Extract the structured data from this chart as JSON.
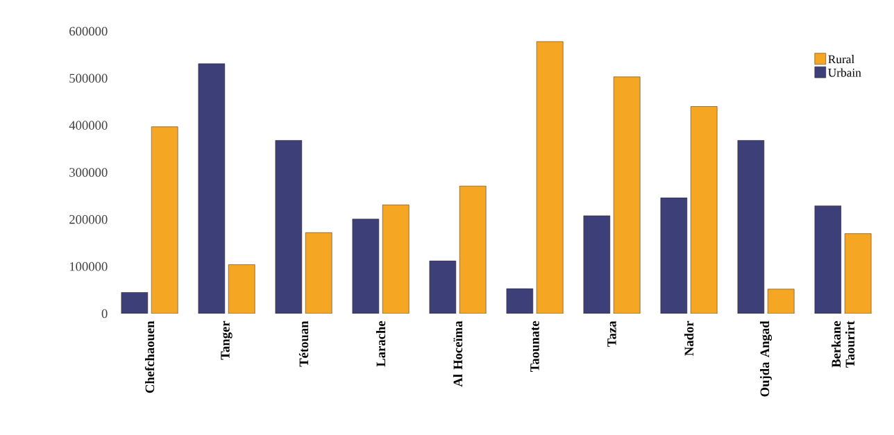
{
  "chart_data": {
    "type": "bar",
    "categories": [
      "Chefchaouen",
      "Tanger",
      "Tétouan",
      "Larache",
      "Al Hoceïma",
      "Taounate",
      "Taza",
      "Nador",
      "Oujda Angad",
      "Berkane Taourirt"
    ],
    "series": [
      {
        "name": "Urbain",
        "color": "#3c3f78",
        "values": [
          45000,
          531000,
          368000,
          201000,
          112000,
          53000,
          208000,
          246000,
          368000,
          229000
        ]
      },
      {
        "name": "Rural",
        "color": "#f5a623",
        "values": [
          397000,
          104000,
          172000,
          231000,
          271000,
          578000,
          503000,
          440000,
          52000,
          170000
        ]
      }
    ],
    "ylim": [
      0,
      600000
    ],
    "yticks": [
      0,
      100000,
      200000,
      300000,
      400000,
      500000,
      600000
    ],
    "legend": "top right"
  }
}
